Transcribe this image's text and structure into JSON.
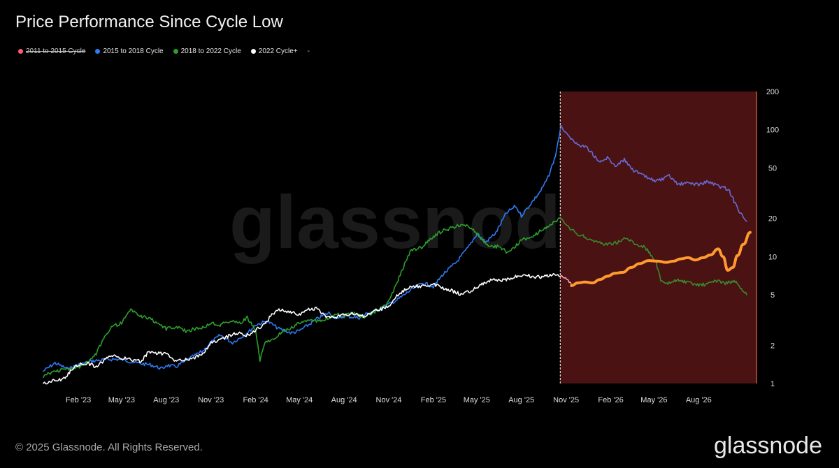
{
  "title": "Price Performance Since Cycle Low",
  "legend": [
    {
      "label": "2011 to 2015 Cycle",
      "color": "#ff5a6e",
      "disabled": true
    },
    {
      "label": "2015 to 2018 Cycle",
      "color": "#2f7bf5",
      "disabled": false
    },
    {
      "label": "2018 to 2022 Cycle",
      "color": "#2ca02c",
      "disabled": false
    },
    {
      "label": "2022 Cycle+",
      "color": "#ffffff",
      "disabled": false
    }
  ],
  "legend_extra": "-",
  "footer": "© 2025 Glassnode. All Rights Reserved.",
  "brand": "glassnode",
  "watermark": "glassnode",
  "chart_data": {
    "type": "line",
    "yscale": "log",
    "ylim": [
      1,
      200
    ],
    "yticks": [
      1,
      2,
      5,
      10,
      20,
      50,
      100,
      200
    ],
    "ytick_labels": [
      "1",
      "2",
      "5",
      "10",
      "20",
      "50",
      "100",
      "200"
    ],
    "xlim": [
      "2022-11-21",
      "2026-11-28"
    ],
    "xticks": [
      {
        "date": "2023-02-01",
        "label": "Feb '23"
      },
      {
        "date": "2023-05-01",
        "label": "May '23"
      },
      {
        "date": "2023-08-01",
        "label": "Aug '23"
      },
      {
        "date": "2023-11-01",
        "label": "Nov '23"
      },
      {
        "date": "2024-02-01",
        "label": "Feb '24"
      },
      {
        "date": "2024-05-01",
        "label": "May '24"
      },
      {
        "date": "2024-08-01",
        "label": "Aug '24"
      },
      {
        "date": "2024-11-01",
        "label": "Nov '24"
      },
      {
        "date": "2025-02-01",
        "label": "Feb '25"
      },
      {
        "date": "2025-05-01",
        "label": "May '25"
      },
      {
        "date": "2025-08-01",
        "label": "Aug '25"
      },
      {
        "date": "2025-11-01",
        "label": "Nov '25"
      },
      {
        "date": "2026-02-01",
        "label": "Feb '26"
      },
      {
        "date": "2026-05-01",
        "label": "May '26"
      },
      {
        "date": "2026-08-01",
        "label": "Aug '26"
      }
    ],
    "shaded_region": {
      "from": "2025-10-20",
      "to": "2026-11-28",
      "color": "#4a1212"
    },
    "vertical_line": "2025-10-20",
    "series": [
      {
        "name": "2015 to 2018 Cycle",
        "color": "#2f7bf5",
        "points": [
          [
            "2022-11-21",
            1.25
          ],
          [
            "2022-12-15",
            1.45
          ],
          [
            "2023-01-10",
            1.3
          ],
          [
            "2023-02-01",
            1.4
          ],
          [
            "2023-03-01",
            1.5
          ],
          [
            "2023-04-01",
            1.55
          ],
          [
            "2023-05-01",
            1.55
          ],
          [
            "2023-06-01",
            1.45
          ],
          [
            "2023-07-01",
            1.4
          ],
          [
            "2023-07-25",
            1.3
          ],
          [
            "2023-08-01",
            1.4
          ],
          [
            "2023-08-20",
            1.35
          ],
          [
            "2023-09-15",
            1.55
          ],
          [
            "2023-10-15",
            1.8
          ],
          [
            "2023-11-01",
            2.1
          ],
          [
            "2023-11-20",
            2.4
          ],
          [
            "2023-12-15",
            2.1
          ],
          [
            "2024-01-01",
            2.3
          ],
          [
            "2024-01-20",
            2.6
          ],
          [
            "2024-02-01",
            2.9
          ],
          [
            "2024-02-25",
            3.1
          ],
          [
            "2024-03-20",
            2.7
          ],
          [
            "2024-04-15",
            2.5
          ],
          [
            "2024-05-01",
            2.6
          ],
          [
            "2024-05-20",
            2.9
          ],
          [
            "2024-06-10",
            3.3
          ],
          [
            "2024-07-01",
            3.6
          ],
          [
            "2024-07-20",
            3.2
          ],
          [
            "2024-08-01",
            3.4
          ],
          [
            "2024-09-01",
            3.3
          ],
          [
            "2024-09-20",
            3.6
          ],
          [
            "2024-10-10",
            3.8
          ],
          [
            "2024-11-01",
            4.2
          ],
          [
            "2024-11-20",
            4.6
          ],
          [
            "2024-12-15",
            5.4
          ],
          [
            "2025-01-10",
            6.2
          ],
          [
            "2025-02-01",
            5.8
          ],
          [
            "2025-02-20",
            7.2
          ],
          [
            "2025-03-20",
            9.0
          ],
          [
            "2025-04-15",
            12.0
          ],
          [
            "2025-05-01",
            15.0
          ],
          [
            "2025-05-20",
            13.0
          ],
          [
            "2025-06-10",
            15.5
          ],
          [
            "2025-07-01",
            22.0
          ],
          [
            "2025-07-20",
            25.0
          ],
          [
            "2025-08-01",
            21.0
          ],
          [
            "2025-08-20",
            26.0
          ],
          [
            "2025-09-10",
            33.0
          ],
          [
            "2025-09-25",
            42.0
          ],
          [
            "2025-10-10",
            62.0
          ],
          [
            "2025-10-20",
            100.0
          ]
        ]
      },
      {
        "name": "2015 to 2018 Cycle (projection)",
        "color": "#6a6ad8",
        "points": [
          [
            "2025-10-20",
            110.0
          ],
          [
            "2025-11-01",
            95.0
          ],
          [
            "2025-11-20",
            78.0
          ],
          [
            "2025-12-15",
            72.0
          ],
          [
            "2026-01-10",
            55.0
          ],
          [
            "2026-01-25",
            60.0
          ],
          [
            "2026-02-10",
            52.0
          ],
          [
            "2026-03-01",
            58.0
          ],
          [
            "2026-03-20",
            48.0
          ],
          [
            "2026-04-15",
            42.0
          ],
          [
            "2026-05-01",
            40.0
          ],
          [
            "2026-05-15",
            40.0
          ],
          [
            "2026-06-01",
            43.0
          ],
          [
            "2026-06-20",
            37.0
          ],
          [
            "2026-07-10",
            38.0
          ],
          [
            "2026-08-01",
            37.0
          ],
          [
            "2026-08-20",
            39.0
          ],
          [
            "2026-09-10",
            36.0
          ],
          [
            "2026-10-01",
            34.0
          ],
          [
            "2026-10-20",
            24.0
          ],
          [
            "2026-11-08",
            19.0
          ]
        ]
      },
      {
        "name": "2018 to 2022 Cycle",
        "color": "#2ca02c",
        "points": [
          [
            "2022-11-21",
            1.15
          ],
          [
            "2022-12-15",
            1.25
          ],
          [
            "2023-01-10",
            1.3
          ],
          [
            "2023-02-01",
            1.35
          ],
          [
            "2023-02-20",
            1.45
          ],
          [
            "2023-03-10",
            1.7
          ],
          [
            "2023-03-25",
            2.3
          ],
          [
            "2023-04-10",
            2.8
          ],
          [
            "2023-05-01",
            3.0
          ],
          [
            "2023-05-20",
            3.8
          ],
          [
            "2023-06-10",
            3.4
          ],
          [
            "2023-07-01",
            3.2
          ],
          [
            "2023-07-20",
            2.9
          ],
          [
            "2023-08-01",
            2.7
          ],
          [
            "2023-08-20",
            2.8
          ],
          [
            "2023-09-10",
            2.6
          ],
          [
            "2023-10-01",
            2.7
          ],
          [
            "2023-10-20",
            2.8
          ],
          [
            "2023-11-01",
            3.0
          ],
          [
            "2023-11-20",
            2.9
          ],
          [
            "2023-12-10",
            3.1
          ],
          [
            "2024-01-01",
            3.0
          ],
          [
            "2024-01-15",
            3.3
          ],
          [
            "2024-02-01",
            2.6
          ],
          [
            "2024-02-10",
            1.5
          ],
          [
            "2024-02-20",
            2.1
          ],
          [
            "2024-03-10",
            2.3
          ],
          [
            "2024-04-01",
            2.6
          ],
          [
            "2024-04-20",
            2.8
          ],
          [
            "2024-05-01",
            3.0
          ],
          [
            "2024-05-20",
            3.2
          ],
          [
            "2024-06-10",
            3.1
          ],
          [
            "2024-07-01",
            3.3
          ],
          [
            "2024-07-20",
            3.5
          ],
          [
            "2024-08-01",
            3.4
          ],
          [
            "2024-08-20",
            3.6
          ],
          [
            "2024-09-10",
            3.3
          ],
          [
            "2024-10-01",
            3.6
          ],
          [
            "2024-10-20",
            4.0
          ],
          [
            "2024-11-01",
            4.4
          ],
          [
            "2024-11-20",
            6.5
          ],
          [
            "2024-12-15",
            11.0
          ],
          [
            "2025-01-10",
            12.0
          ],
          [
            "2025-02-01",
            14.5
          ],
          [
            "2025-02-20",
            16.0
          ],
          [
            "2025-03-15",
            17.0
          ],
          [
            "2025-04-01",
            18.0
          ],
          [
            "2025-04-20",
            17.0
          ],
          [
            "2025-05-10",
            14.0
          ],
          [
            "2025-05-25",
            12.0
          ],
          [
            "2025-06-15",
            12.0
          ],
          [
            "2025-07-01",
            11.0
          ],
          [
            "2025-07-20",
            12.0
          ],
          [
            "2025-08-01",
            13.5
          ],
          [
            "2025-08-20",
            14.0
          ],
          [
            "2025-09-10",
            16.0
          ],
          [
            "2025-09-25",
            17.5
          ],
          [
            "2025-10-10",
            19.0
          ],
          [
            "2025-10-20",
            20.0
          ]
        ]
      },
      {
        "name": "2018 to 2022 Cycle (projection)",
        "color": "#3a8a2f",
        "points": [
          [
            "2025-10-20",
            20.0
          ],
          [
            "2025-11-05",
            17.0
          ],
          [
            "2025-11-25",
            15.0
          ],
          [
            "2025-12-15",
            14.0
          ],
          [
            "2026-01-05",
            13.0
          ],
          [
            "2026-01-25",
            12.5
          ],
          [
            "2026-02-15",
            13.0
          ],
          [
            "2026-03-05",
            14.0
          ],
          [
            "2026-03-25",
            12.5
          ],
          [
            "2026-04-10",
            12.0
          ],
          [
            "2026-04-20",
            11.0
          ],
          [
            "2026-05-05",
            9.0
          ],
          [
            "2026-05-15",
            6.5
          ],
          [
            "2026-05-25",
            6.0
          ],
          [
            "2026-06-15",
            6.5
          ],
          [
            "2026-07-05",
            6.3
          ],
          [
            "2026-07-25",
            6.0
          ],
          [
            "2026-08-15",
            6.0
          ],
          [
            "2026-09-05",
            6.5
          ],
          [
            "2026-09-25",
            6.2
          ],
          [
            "2026-10-15",
            6.4
          ],
          [
            "2026-10-30",
            5.3
          ],
          [
            "2026-11-08",
            5.0
          ]
        ]
      },
      {
        "name": "2022 Cycle+",
        "color": "#ffffff",
        "points": [
          [
            "2022-11-21",
            1.0
          ],
          [
            "2022-12-10",
            1.05
          ],
          [
            "2023-01-05",
            1.1
          ],
          [
            "2023-01-20",
            1.3
          ],
          [
            "2023-02-01",
            1.4
          ],
          [
            "2023-02-20",
            1.45
          ],
          [
            "2023-03-10",
            1.35
          ],
          [
            "2023-03-25",
            1.5
          ],
          [
            "2023-04-10",
            1.65
          ],
          [
            "2023-05-01",
            1.6
          ],
          [
            "2023-05-20",
            1.55
          ],
          [
            "2023-06-10",
            1.5
          ],
          [
            "2023-06-25",
            1.75
          ],
          [
            "2023-07-10",
            1.75
          ],
          [
            "2023-08-01",
            1.7
          ],
          [
            "2023-08-20",
            1.5
          ],
          [
            "2023-09-10",
            1.55
          ],
          [
            "2023-10-01",
            1.6
          ],
          [
            "2023-10-20",
            1.8
          ],
          [
            "2023-11-01",
            2.1
          ],
          [
            "2023-11-20",
            2.2
          ],
          [
            "2023-12-10",
            2.4
          ],
          [
            "2024-01-01",
            2.5
          ],
          [
            "2024-01-15",
            2.4
          ],
          [
            "2024-02-01",
            2.6
          ],
          [
            "2024-02-20",
            3.0
          ],
          [
            "2024-03-10",
            3.6
          ],
          [
            "2024-03-20",
            3.8
          ],
          [
            "2024-04-10",
            3.7
          ],
          [
            "2024-05-01",
            3.5
          ],
          [
            "2024-05-20",
            3.8
          ],
          [
            "2024-06-05",
            3.9
          ],
          [
            "2024-06-25",
            3.4
          ],
          [
            "2024-07-10",
            3.3
          ],
          [
            "2024-08-01",
            3.5
          ],
          [
            "2024-08-20",
            3.6
          ],
          [
            "2024-09-10",
            3.4
          ],
          [
            "2024-10-01",
            3.7
          ],
          [
            "2024-10-20",
            3.9
          ],
          [
            "2024-11-01",
            4.1
          ],
          [
            "2024-11-20",
            5.0
          ],
          [
            "2024-12-15",
            5.8
          ],
          [
            "2025-01-10",
            5.9
          ],
          [
            "2025-02-01",
            6.0
          ],
          [
            "2025-02-20",
            5.7
          ],
          [
            "2025-03-10",
            5.4
          ],
          [
            "2025-04-01",
            5.0
          ],
          [
            "2025-04-20",
            5.4
          ],
          [
            "2025-05-10",
            6.0
          ],
          [
            "2025-05-25",
            6.5
          ],
          [
            "2025-06-15",
            6.5
          ],
          [
            "2025-07-01",
            6.6
          ],
          [
            "2025-07-20",
            7.0
          ],
          [
            "2025-08-10",
            7.2
          ],
          [
            "2025-08-25",
            6.9
          ],
          [
            "2025-09-10",
            6.9
          ],
          [
            "2025-09-25",
            7.0
          ],
          [
            "2025-10-10",
            7.3
          ],
          [
            "2025-10-20",
            7.0
          ]
        ]
      },
      {
        "name": "2022 Cycle+ (recent)",
        "color": "#f4a6ae",
        "points": [
          [
            "2025-10-20",
            7.0
          ],
          [
            "2025-10-28",
            6.8
          ],
          [
            "2025-11-05",
            6.4
          ],
          [
            "2025-11-12",
            6.0
          ]
        ]
      },
      {
        "name": "Projection",
        "color": "#ff9a2e",
        "points": [
          [
            "2025-11-12",
            5.9
          ],
          [
            "2025-11-25",
            6.2
          ],
          [
            "2025-12-10",
            6.3
          ],
          [
            "2025-12-25",
            6.2
          ],
          [
            "2026-01-10",
            6.6
          ],
          [
            "2026-01-25",
            7.0
          ],
          [
            "2026-02-10",
            7.4
          ],
          [
            "2026-02-25",
            7.5
          ],
          [
            "2026-03-15",
            8.2
          ],
          [
            "2026-04-01",
            8.8
          ],
          [
            "2026-04-20",
            9.3
          ],
          [
            "2026-05-10",
            9.2
          ],
          [
            "2026-05-25",
            9.0
          ],
          [
            "2026-06-10",
            9.2
          ],
          [
            "2026-06-25",
            9.6
          ],
          [
            "2026-07-10",
            9.8
          ],
          [
            "2026-07-25",
            9.4
          ],
          [
            "2026-08-10",
            9.8
          ],
          [
            "2026-08-25",
            10.3
          ],
          [
            "2026-09-10",
            11.5
          ],
          [
            "2026-09-20",
            10.0
          ],
          [
            "2026-09-30",
            7.8
          ],
          [
            "2026-10-10",
            8.2
          ],
          [
            "2026-10-20",
            10.2
          ],
          [
            "2026-11-01",
            12.5
          ],
          [
            "2026-11-15",
            15.5
          ]
        ]
      }
    ]
  }
}
